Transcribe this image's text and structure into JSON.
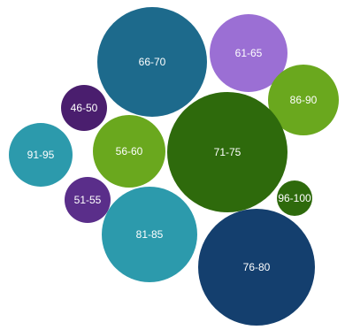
{
  "chart_data": {
    "type": "bubble",
    "title": "",
    "legend": "none",
    "bubbles": [
      {
        "label": "66-70",
        "value": 62,
        "color": "#1d6a8c"
      },
      {
        "label": "61-65",
        "value": 44,
        "color": "#9b6fd4"
      },
      {
        "label": "86-90",
        "value": 40,
        "color": "#6aa81e"
      },
      {
        "label": "46-50",
        "value": 26,
        "color": "#4a1e6e"
      },
      {
        "label": "91-95",
        "value": 36,
        "color": "#2c9aac"
      },
      {
        "label": "56-60",
        "value": 41,
        "color": "#6aa81e"
      },
      {
        "label": "71-75",
        "value": 68,
        "color": "#2e6a0c"
      },
      {
        "label": "96-100",
        "value": 20,
        "color": "#2e6a0c"
      },
      {
        "label": "51-55",
        "value": 26,
        "color": "#5a2e8a"
      },
      {
        "label": "81-85",
        "value": 54,
        "color": "#2c9aac"
      },
      {
        "label": "76-80",
        "value": 66,
        "color": "#143f6e"
      }
    ]
  }
}
